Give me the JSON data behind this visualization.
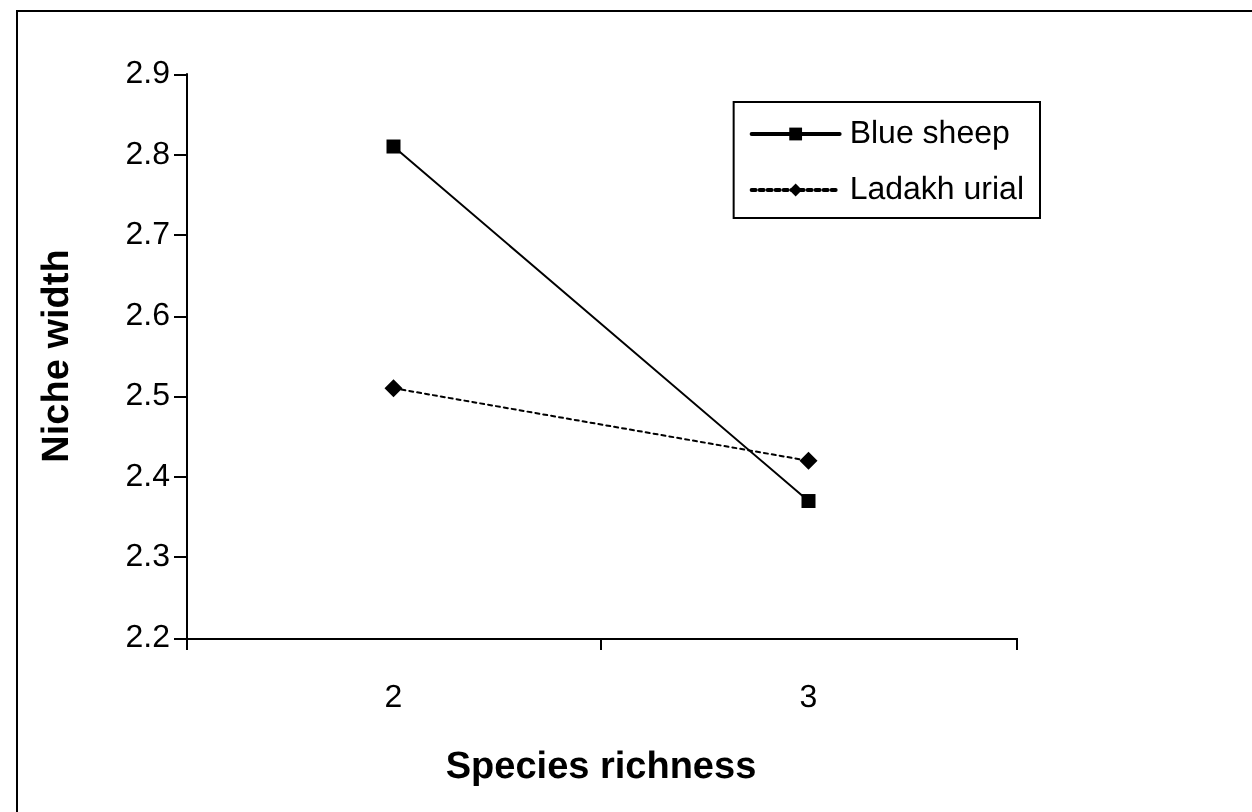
{
  "chart_data": {
    "type": "line",
    "xlabel": "Species richness",
    "ylabel": "Niche width",
    "categories": [
      "2",
      "3"
    ],
    "series": [
      {
        "name": "Blue sheep",
        "color": "#000000",
        "values": [
          2.81,
          2.37
        ],
        "marker": "square",
        "line_style": "solid"
      },
      {
        "name": "Ladakh urial",
        "color": "#000000",
        "values": [
          2.51,
          2.42
        ],
        "marker": "diamond",
        "line_style": "dotted"
      }
    ],
    "ylim": [
      2.2,
      2.9
    ],
    "yticks": [
      2.2,
      2.3,
      2.4,
      2.5,
      2.6,
      2.7,
      2.8,
      2.9
    ],
    "grid": false,
    "legend": "top right"
  }
}
